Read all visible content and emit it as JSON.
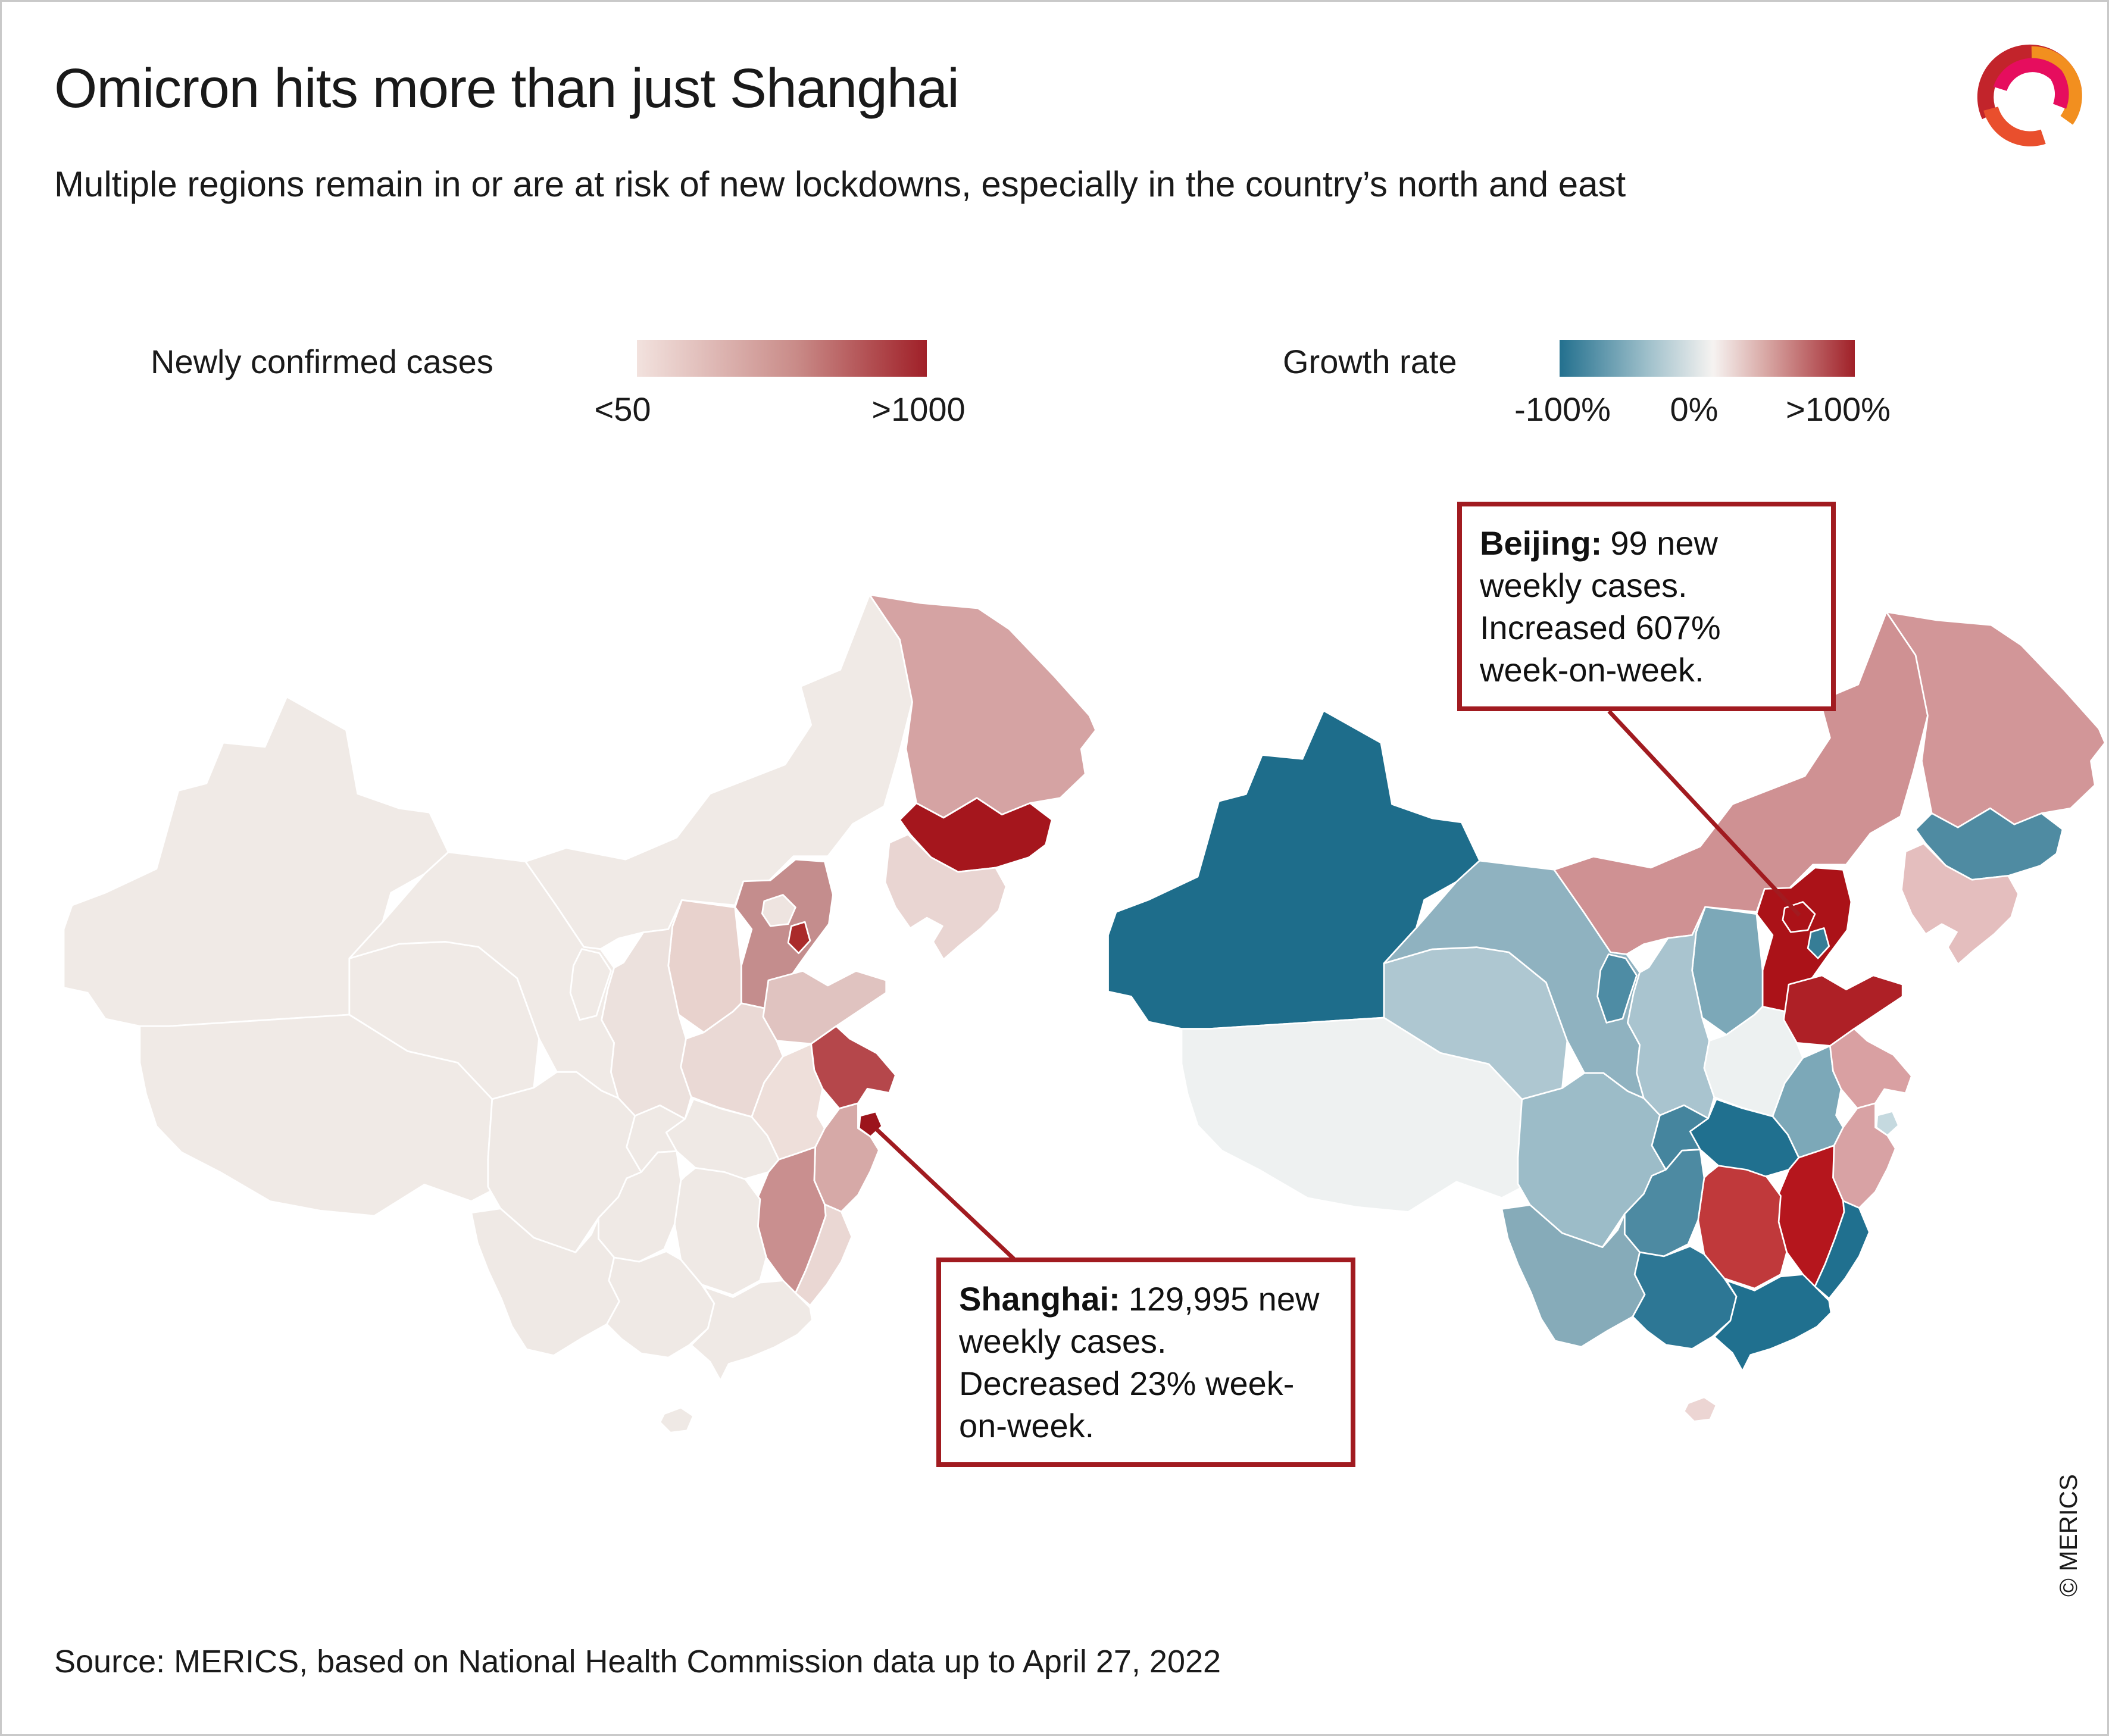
{
  "header": {
    "title": "Omicron hits more than just Shanghai",
    "subtitle": "Multiple regions remain in or are at risk of new lockdowns, especially in the country’s north and east"
  },
  "accent_color": "#a11b20",
  "legends": {
    "cases": {
      "label": "Newly confirmed cases",
      "min": "<50",
      "max": ">1000"
    },
    "growth": {
      "label": "Growth rate",
      "min": "-100%",
      "mid": "0%",
      "max": ">100%"
    }
  },
  "annotations": {
    "beijing": {
      "name": "Beijing:",
      "text": "99 new weekly cases. Increased 607% week-on-week."
    },
    "shanghai": {
      "name": "Shanghai:",
      "text": "129,995 new weekly cases. Decreased 23% week-on-week."
    }
  },
  "footer": {
    "source": "Source: MERICS, based on National Health Commission data up to April 27, 2022",
    "copyright": "© MERICS"
  },
  "logo_colors": {
    "crimson": "#c2242b",
    "orange": "#f28f1f",
    "magenta": "#e60d5e",
    "vermilion": "#e94f2d"
  },
  "map_layout": {
    "draw_order": [
      "xinjiang",
      "tibet",
      "qinghai",
      "gansu",
      "inner_mongolia",
      "heilongjiang",
      "jilin",
      "liaoning",
      "hebei",
      "shanxi",
      "shaanxi",
      "ningxia",
      "sichuan",
      "chongqing",
      "hubei",
      "henan",
      "shandong",
      "anhui",
      "jiangsu",
      "zhejiang",
      "jiangxi",
      "hunan",
      "guizhou",
      "yunnan",
      "guangxi",
      "guangdong",
      "fujian",
      "hainan",
      "shanghai",
      "beijing",
      "tianjin"
    ]
  },
  "chart_data": [
    {
      "type": "choropleth",
      "map": "china-provinces",
      "title": "Newly confirmed cases",
      "scale": {
        "kind": "sequential",
        "domain_labels": [
          "<50",
          ">1000"
        ],
        "stops": [
          {
            "pos": 0,
            "color": "#f2e2de"
          },
          {
            "pos": 55,
            "color": "#c98b88"
          },
          {
            "pos": 100,
            "color": "#a02028"
          }
        ]
      },
      "callout_region": "shanghai",
      "callout_value": "129,995 new weekly cases",
      "regions": {
        "xinjiang": "#f0eae6",
        "tibet": "#f0eae6",
        "qinghai": "#f0eae6",
        "gansu": "#f0eae6",
        "ningxia": "#f0eae6",
        "inner_mongolia": "#f0eae6",
        "heilongjiang": "#d5a3a3",
        "jilin": "#a5161d",
        "liaoning": "#e9d5d2",
        "hebei": "#c48d8d",
        "beijing": "#eee4e0",
        "tianjin": "#aa2a2a",
        "shanxi": "#e8d2cd",
        "shaanxi": "#ece1dd",
        "shandong": "#e0c3c0",
        "henan": "#ead9d5",
        "jiangsu": "#b5474b",
        "shanghai": "#9c141c",
        "anhui": "#eedfda",
        "zhejiang": "#d6a9a7",
        "jiangxi": "#c98f8f",
        "fujian": "#ead7d3",
        "hubei": "#efe9e5",
        "hunan": "#efe9e5",
        "chongqing": "#efe9e5",
        "sichuan": "#efe9e5",
        "guizhou": "#efe9e5",
        "yunnan": "#efe9e5",
        "guangxi": "#efe9e5",
        "guangdong": "#efe9e5",
        "hainan": "#efe9e5"
      }
    },
    {
      "type": "choropleth",
      "map": "china-provinces",
      "title": "Growth rate",
      "scale": {
        "kind": "diverging",
        "domain_labels": [
          "-100%",
          "0%",
          ">100%"
        ],
        "stops": [
          {
            "pos": 0,
            "color": "#23708e"
          },
          {
            "pos": 30,
            "color": "#9fc0cb"
          },
          {
            "pos": 52,
            "color": "#f6f3f1"
          },
          {
            "pos": 70,
            "color": "#d8a7a4"
          },
          {
            "pos": 100,
            "color": "#a02028"
          }
        ]
      },
      "callout_region": "beijing",
      "callout_value": "99 new weekly cases, +607% week-on-week",
      "regions": {
        "xinjiang": "#1e6d8b",
        "tibet": "#eef1f1",
        "qinghai": "#aec7d1",
        "gansu": "#8fb2c0",
        "ningxia": "#4e8ca4",
        "inner_mongolia": "#cf9193",
        "heilongjiang": "#d29698",
        "jilin": "#4f8ba2",
        "liaoning": "#e4bebe",
        "hebei": "#ab1218",
        "beijing": "#ab1218",
        "tianjin": "#367d96",
        "shanxi": "#7ca8b8",
        "shaanxi": "#a9c4cf",
        "shandong": "#ae2026",
        "henan": "#edf1f1",
        "jiangsu": "#d9a0a2",
        "shanghai": "#c5d9df",
        "anhui": "#7ca8b8",
        "zhejiang": "#d8a2a4",
        "jiangxi": "#b5161d",
        "hubei": "#20708f",
        "hunan": "#c0393b",
        "chongqing": "#45859e",
        "sichuan": "#9cbcc8",
        "guizhou": "#4d8aa2",
        "yunnan": "#86abb9",
        "guangxi": "#2d7795",
        "guangdong": "#20708f",
        "fujian": "#20708f",
        "hainan": "#ecd5d3"
      }
    }
  ]
}
